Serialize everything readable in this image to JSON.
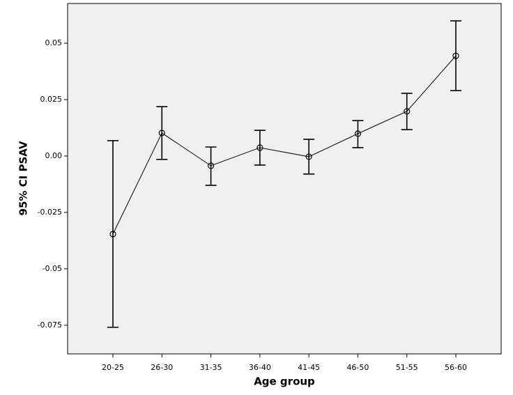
{
  "chart_data": {
    "type": "errorbar-line",
    "x_label": "Age group",
    "y_label": "95% CI PSAV",
    "categories": [
      "20-25",
      "26-30",
      "31-35",
      "36-40",
      "41-45",
      "46-50",
      "51-55",
      "56-60"
    ],
    "series": [
      {
        "color": "#000000",
        "values": [
          -0.0346,
          0.0102,
          -0.0043,
          0.0037,
          -0.0003,
          0.0099,
          0.0198,
          0.0444
        ],
        "lower": [
          -0.0759,
          -0.0015,
          -0.013,
          -0.004,
          -0.008,
          0.0037,
          0.0117,
          0.029
        ],
        "upper": [
          0.0068,
          0.0219,
          0.004,
          0.0114,
          0.0074,
          0.0157,
          0.0278,
          0.0599
        ]
      }
    ],
    "ylim": [
      -0.0877,
      0.0676
    ],
    "yticks": [
      0.05,
      0.025,
      {
        "value": 0,
        "label": "0.00"
      },
      -0.025,
      -0.05,
      -0.075
    ],
    "background": "#f0f0f0"
  }
}
